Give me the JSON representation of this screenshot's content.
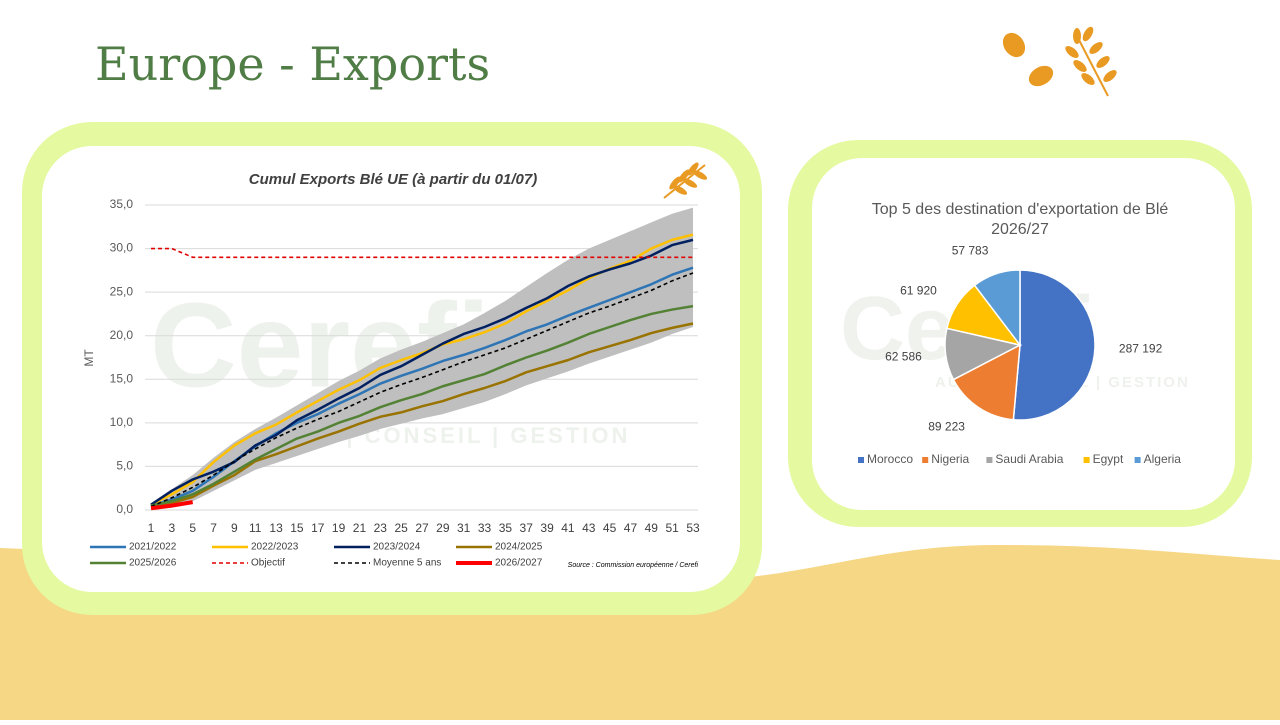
{
  "page_title": "Europe - Exports",
  "watermark": {
    "name": "Cerefi",
    "tagline": "AUDIT | CONSEIL | GESTION"
  },
  "chart_data": [
    {
      "type": "line",
      "title": "Cumul Exports Blé UE (à partir du 01/07)",
      "y_label": "MT",
      "source": "Source : Commission européenne / Cerefi",
      "x": [
        1,
        3,
        5,
        7,
        9,
        11,
        13,
        15,
        17,
        19,
        21,
        23,
        25,
        27,
        29,
        31,
        33,
        35,
        37,
        39,
        41,
        43,
        45,
        47,
        49,
        51,
        53
      ],
      "xlim": [
        1,
        53
      ],
      "xticks": [
        1,
        3,
        5,
        7,
        9,
        11,
        13,
        15,
        17,
        19,
        21,
        23,
        25,
        27,
        29,
        31,
        33,
        35,
        37,
        39,
        41,
        43,
        45,
        47,
        49,
        51,
        53
      ],
      "ylim": [
        0,
        35
      ],
      "yticks": [
        {
          "value": 0,
          "label": "0,0"
        },
        {
          "value": 5,
          "label": "5,0"
        },
        {
          "value": 10,
          "label": "10,0"
        },
        {
          "value": 15,
          "label": "15,0"
        },
        {
          "value": 20,
          "label": "20,0"
        },
        {
          "value": 25,
          "label": "25,0"
        },
        {
          "value": 30,
          "label": "30,0"
        },
        {
          "value": 35,
          "label": "35,0"
        }
      ],
      "grid": true,
      "band": {
        "color": "#bfbfbf",
        "high": [
          0.8,
          2.4,
          4.0,
          6.0,
          7.8,
          9.3,
          10.6,
          12.0,
          13.4,
          14.8,
          16.0,
          17.4,
          18.4,
          19.3,
          20.3,
          21.3,
          22.6,
          24.0,
          25.6,
          27.2,
          28.7,
          30.0,
          31.0,
          32.0,
          33.0,
          34.0,
          34.7
        ],
        "low": [
          0.2,
          0.5,
          1.0,
          2.2,
          3.4,
          4.6,
          5.4,
          6.2,
          7.0,
          7.8,
          8.5,
          9.3,
          9.9,
          10.5,
          11.0,
          11.7,
          12.4,
          13.3,
          14.3,
          15.1,
          15.9,
          16.8,
          17.6,
          18.4,
          19.2,
          20.2,
          21.0
        ]
      },
      "series": [
        {
          "name": "2021/2022",
          "color": "#2e75b6",
          "values": [
            0.5,
            1.2,
            2.2,
            3.8,
            5.6,
            7.3,
            8.8,
            10.0,
            11.0,
            12.2,
            13.3,
            14.5,
            15.4,
            16.2,
            17.1,
            17.8,
            18.6,
            19.5,
            20.5,
            21.3,
            22.3,
            23.2,
            24.1,
            25.0,
            25.9,
            27.0,
            27.8
          ]
        },
        {
          "name": "2022/2023",
          "color": "#ffc000",
          "values": [
            0.6,
            1.8,
            3.2,
            5.5,
            7.4,
            8.8,
            9.8,
            11.2,
            12.5,
            13.8,
            14.9,
            16.3,
            17.2,
            18.0,
            19.0,
            19.6,
            20.4,
            21.4,
            22.8,
            24.0,
            25.2,
            26.6,
            27.7,
            28.6,
            30.0,
            31.0,
            31.6
          ]
        },
        {
          "name": "2023/2024",
          "color": "#002060",
          "values": [
            0.6,
            2.2,
            3.5,
            4.4,
            5.5,
            7.4,
            8.6,
            10.3,
            11.5,
            12.8,
            14.0,
            15.5,
            16.5,
            17.8,
            19.1,
            20.2,
            21.0,
            22.0,
            23.2,
            24.3,
            25.7,
            26.8,
            27.6,
            28.3,
            29.2,
            30.4,
            31.0
          ]
        },
        {
          "name": "2024/2025",
          "color": "#997300",
          "values": [
            0.4,
            0.8,
            1.5,
            2.8,
            4.0,
            5.6,
            6.4,
            7.3,
            8.2,
            9.0,
            9.9,
            10.7,
            11.2,
            11.9,
            12.5,
            13.3,
            14.0,
            14.8,
            15.8,
            16.5,
            17.2,
            18.1,
            18.8,
            19.5,
            20.3,
            20.9,
            21.4
          ]
        },
        {
          "name": "2025/2026",
          "color": "#548235",
          "values": [
            0.5,
            1.0,
            1.8,
            3.0,
            4.4,
            5.8,
            7.0,
            8.2,
            9.0,
            10.0,
            10.8,
            11.8,
            12.6,
            13.3,
            14.2,
            14.9,
            15.6,
            16.6,
            17.5,
            18.3,
            19.2,
            20.2,
            21.0,
            21.8,
            22.5,
            23.0,
            23.4
          ]
        },
        {
          "name": "Objectif",
          "color": "#e00000",
          "dashed": true,
          "values": [
            30,
            30,
            29,
            29,
            29,
            29,
            29,
            29,
            29,
            29,
            29,
            29,
            29,
            29,
            29,
            29,
            29,
            29,
            29,
            29,
            29,
            29,
            29,
            29,
            29,
            29,
            29
          ]
        },
        {
          "name": "Moyenne 5 ans",
          "color": "#000000",
          "dashed": true,
          "values": [
            0.4,
            1.4,
            2.6,
            4.0,
            5.6,
            7.0,
            8.3,
            9.4,
            10.4,
            11.3,
            12.4,
            13.5,
            14.4,
            15.2,
            16.1,
            17.0,
            17.8,
            18.6,
            19.6,
            20.6,
            21.6,
            22.6,
            23.4,
            24.3,
            25.2,
            26.3,
            27.2
          ]
        },
        {
          "name": "2026/2027",
          "color": "#ff0000",
          "thick": true,
          "values": [
            0.2,
            0.5,
            0.9,
            null,
            null,
            null,
            null,
            null,
            null,
            null,
            null,
            null,
            null,
            null,
            null,
            null,
            null,
            null,
            null,
            null,
            null,
            null,
            null,
            null,
            null,
            null,
            null
          ]
        }
      ]
    },
    {
      "type": "pie",
      "title": "Top 5 des destination d'exportation de Blé 2026/27",
      "categories": [
        "Morocco",
        "Nigeria",
        "Saudi Arabia",
        "Egypt",
        "Algeria"
      ],
      "values": [
        287192,
        89223,
        62586,
        61920,
        57783
      ],
      "value_labels": [
        "287 192",
        "89 223",
        "62 586",
        "61 920",
        "57 783"
      ],
      "colors": [
        "#4472c4",
        "#ed7d31",
        "#a5a5a5",
        "#ffc000",
        "#5b9bd5"
      ],
      "legend": "bottom"
    }
  ]
}
